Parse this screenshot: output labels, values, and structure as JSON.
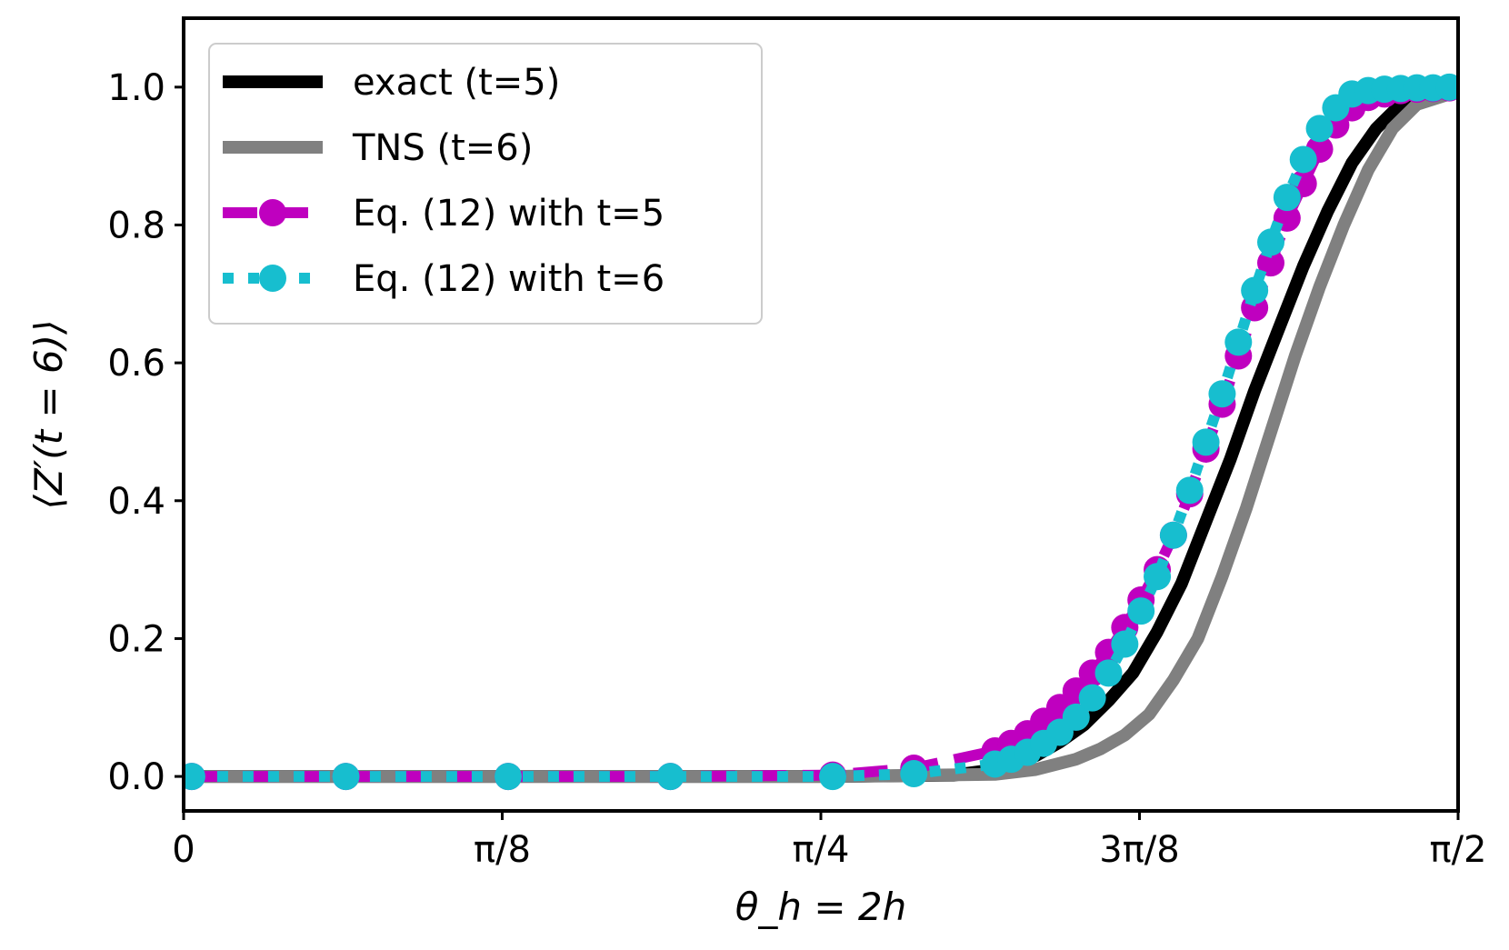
{
  "chart_data": {
    "type": "line",
    "title": "",
    "xlabel": "θ_h = 2h",
    "ylabel": "⟨Z′(t = 6)⟩",
    "xlim": [
      0,
      1.5708
    ],
    "ylim": [
      -0.05,
      1.1
    ],
    "x_ticks": [
      {
        "value": 0,
        "label": "0"
      },
      {
        "value": 0.3927,
        "label": "π/8"
      },
      {
        "value": 0.7854,
        "label": "π/4"
      },
      {
        "value": 1.1781,
        "label": "3π/8"
      },
      {
        "value": 1.5708,
        "label": "π/2"
      }
    ],
    "y_ticks": [
      {
        "value": 0.0,
        "label": "0.0"
      },
      {
        "value": 0.2,
        "label": "0.2"
      },
      {
        "value": 0.4,
        "label": "0.4"
      },
      {
        "value": 0.6,
        "label": "0.6"
      },
      {
        "value": 0.8,
        "label": "0.8"
      },
      {
        "value": 1.0,
        "label": "1.0"
      }
    ],
    "legend_position": "top-left",
    "series": [
      {
        "name": "exact (t=5)",
        "style": "solid",
        "color": "#000000",
        "x": [
          0,
          0.4,
          0.8,
          0.95,
          1.0,
          1.05,
          1.08,
          1.11,
          1.14,
          1.17,
          1.2,
          1.23,
          1.26,
          1.29,
          1.32,
          1.35,
          1.38,
          1.41,
          1.44,
          1.47,
          1.5,
          1.53,
          1.56
        ],
        "y": [
          0,
          0,
          0,
          0.002,
          0.01,
          0.03,
          0.05,
          0.075,
          0.11,
          0.15,
          0.21,
          0.28,
          0.37,
          0.46,
          0.56,
          0.65,
          0.74,
          0.82,
          0.89,
          0.94,
          0.975,
          0.99,
          0.995
        ]
      },
      {
        "name": "TNS (t=6)",
        "style": "solid",
        "color": "#808080",
        "x": [
          0,
          0.4,
          0.8,
          1.0,
          1.05,
          1.1,
          1.13,
          1.16,
          1.19,
          1.22,
          1.25,
          1.28,
          1.31,
          1.34,
          1.37,
          1.4,
          1.43,
          1.46,
          1.49,
          1.52,
          1.56
        ],
        "y": [
          0,
          0,
          0,
          0.003,
          0.01,
          0.025,
          0.04,
          0.06,
          0.09,
          0.14,
          0.2,
          0.29,
          0.39,
          0.5,
          0.61,
          0.71,
          0.8,
          0.88,
          0.94,
          0.975,
          0.99
        ]
      },
      {
        "name": "Eq. (12) with t=5",
        "style": "dashed-marker",
        "color": "#bf00bf",
        "x": [
          0.01,
          0.2,
          0.4,
          0.6,
          0.8,
          0.9,
          1.0,
          1.02,
          1.04,
          1.06,
          1.08,
          1.1,
          1.12,
          1.14,
          1.16,
          1.18,
          1.2,
          1.22,
          1.24,
          1.26,
          1.28,
          1.3,
          1.32,
          1.34,
          1.36,
          1.38,
          1.4,
          1.42,
          1.44,
          1.46,
          1.48,
          1.5,
          1.52,
          1.54,
          1.56
        ],
        "y": [
          0,
          0,
          0,
          0,
          0.002,
          0.012,
          0.037,
          0.048,
          0.062,
          0.08,
          0.1,
          0.124,
          0.15,
          0.18,
          0.216,
          0.256,
          0.3,
          0.35,
          0.41,
          0.475,
          0.54,
          0.61,
          0.68,
          0.745,
          0.81,
          0.86,
          0.91,
          0.945,
          0.97,
          0.985,
          0.99,
          0.995,
          0.997,
          0.998,
          0.999
        ]
      },
      {
        "name": "Eq. (12) with t=6",
        "style": "dotted-marker",
        "color": "#17becf",
        "x": [
          0.01,
          0.2,
          0.4,
          0.6,
          0.8,
          0.9,
          1.0,
          1.02,
          1.04,
          1.06,
          1.08,
          1.1,
          1.12,
          1.14,
          1.16,
          1.18,
          1.2,
          1.22,
          1.24,
          1.26,
          1.28,
          1.3,
          1.32,
          1.34,
          1.36,
          1.38,
          1.4,
          1.42,
          1.44,
          1.46,
          1.48,
          1.5,
          1.52,
          1.54,
          1.56
        ],
        "y": [
          0,
          0,
          0,
          0,
          0,
          0.004,
          0.018,
          0.025,
          0.035,
          0.048,
          0.064,
          0.086,
          0.114,
          0.15,
          0.192,
          0.24,
          0.29,
          0.35,
          0.415,
          0.485,
          0.555,
          0.63,
          0.705,
          0.775,
          0.84,
          0.895,
          0.94,
          0.97,
          0.99,
          0.995,
          0.997,
          0.998,
          0.999,
          0.999,
          1.0
        ]
      }
    ]
  }
}
